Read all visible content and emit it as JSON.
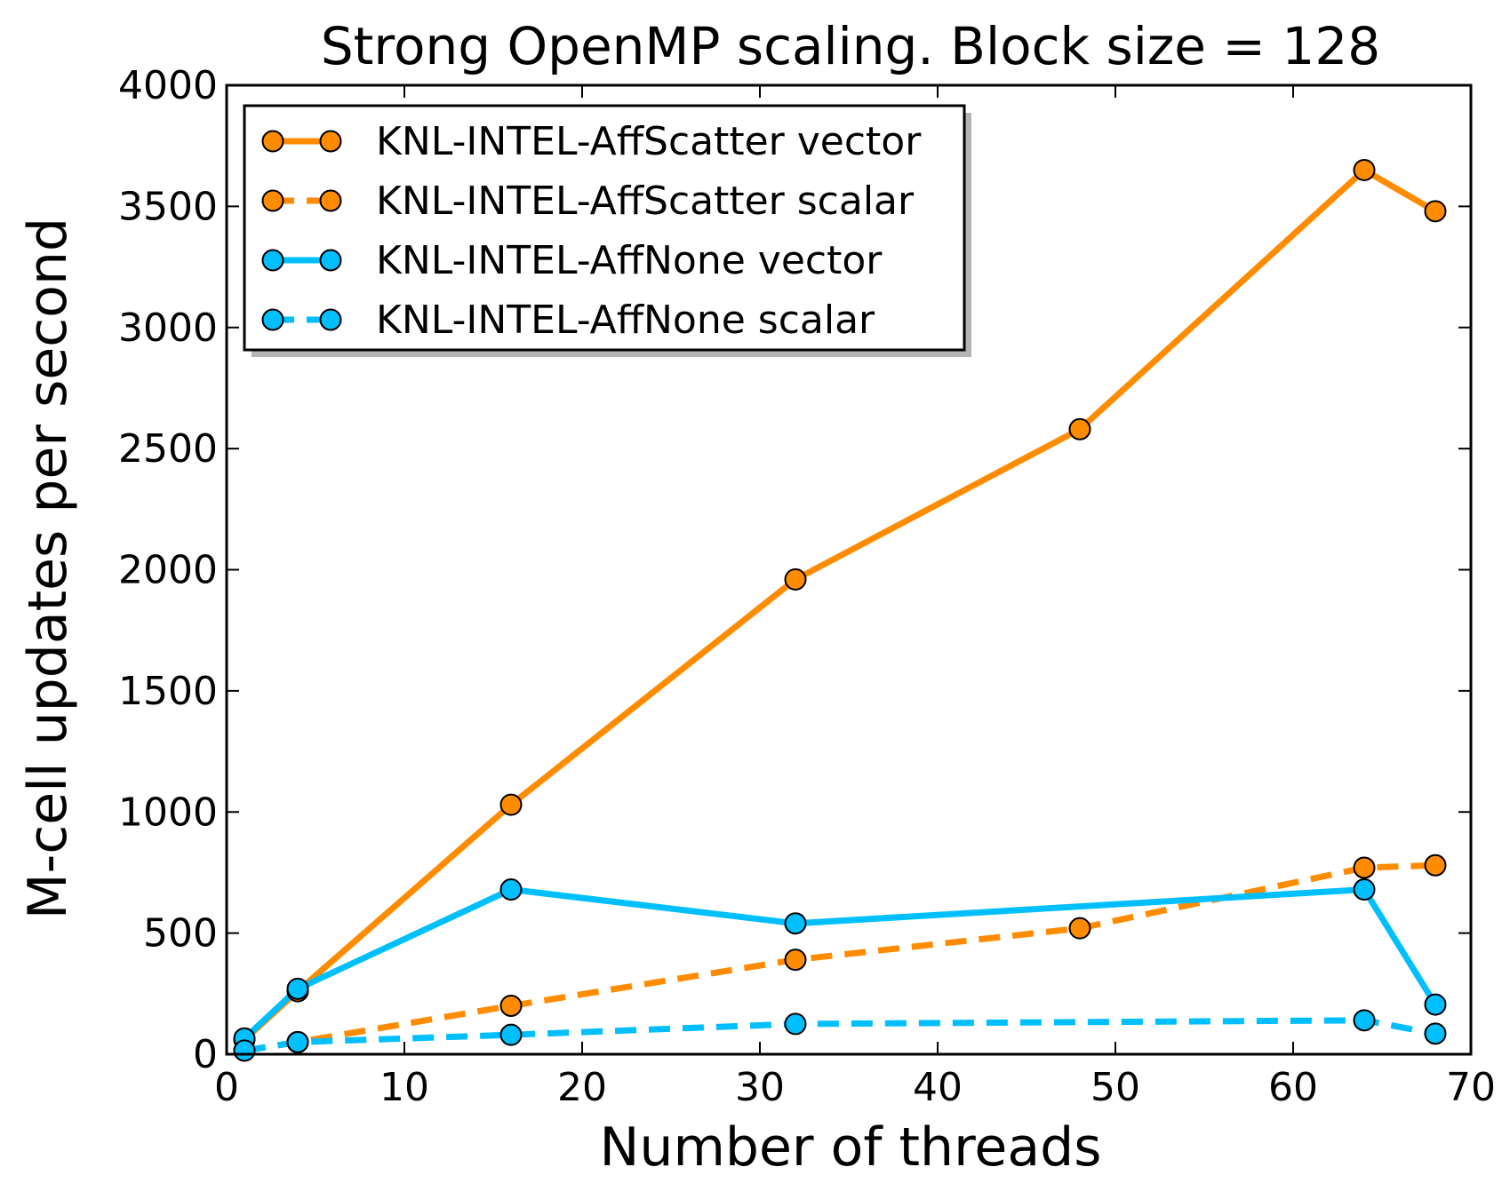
{
  "chart_data": {
    "type": "line",
    "title": "Strong OpenMP scaling.  Block size = 128",
    "xlabel": "Number of threads",
    "ylabel": "M-cell updates per second",
    "xlim": [
      0,
      70
    ],
    "ylim": [
      0,
      4000
    ],
    "x_ticks": [
      0,
      10,
      20,
      30,
      40,
      50,
      60,
      70
    ],
    "y_ticks": [
      0,
      500,
      1000,
      1500,
      2000,
      2500,
      3000,
      3500,
      4000
    ],
    "x_tick_labels": [
      "0",
      "10",
      "20",
      "30",
      "40",
      "50",
      "60",
      "70"
    ],
    "y_tick_labels": [
      "0",
      "500",
      "1000",
      "1500",
      "2000",
      "2500",
      "3000",
      "3500",
      "4000"
    ],
    "grid": false,
    "legend_position": "top-left",
    "series": [
      {
        "name": "KNL-INTEL-AffScatter vector",
        "color": "#ff8c00",
        "style": "solid",
        "x": [
          1,
          4,
          16,
          32,
          48,
          64,
          68
        ],
        "y": [
          60,
          260,
          1030,
          1960,
          2580,
          3650,
          3480
        ]
      },
      {
        "name": "KNL-INTEL-AffScatter scalar",
        "color": "#ff8c00",
        "style": "dashed",
        "x": [
          1,
          4,
          16,
          32,
          48,
          64,
          68
        ],
        "y": [
          15,
          50,
          200,
          390,
          520,
          770,
          780
        ]
      },
      {
        "name": "KNL-INTEL-AffNone vector",
        "color": "#00bfff",
        "style": "solid",
        "x": [
          1,
          4,
          16,
          32,
          64,
          68
        ],
        "y": [
          65,
          270,
          680,
          540,
          680,
          205
        ]
      },
      {
        "name": "KNL-INTEL-AffNone scalar",
        "color": "#00bfff",
        "style": "dashed",
        "x": [
          1,
          4,
          16,
          32,
          64,
          68
        ],
        "y": [
          15,
          50,
          80,
          125,
          140,
          85
        ]
      }
    ]
  }
}
